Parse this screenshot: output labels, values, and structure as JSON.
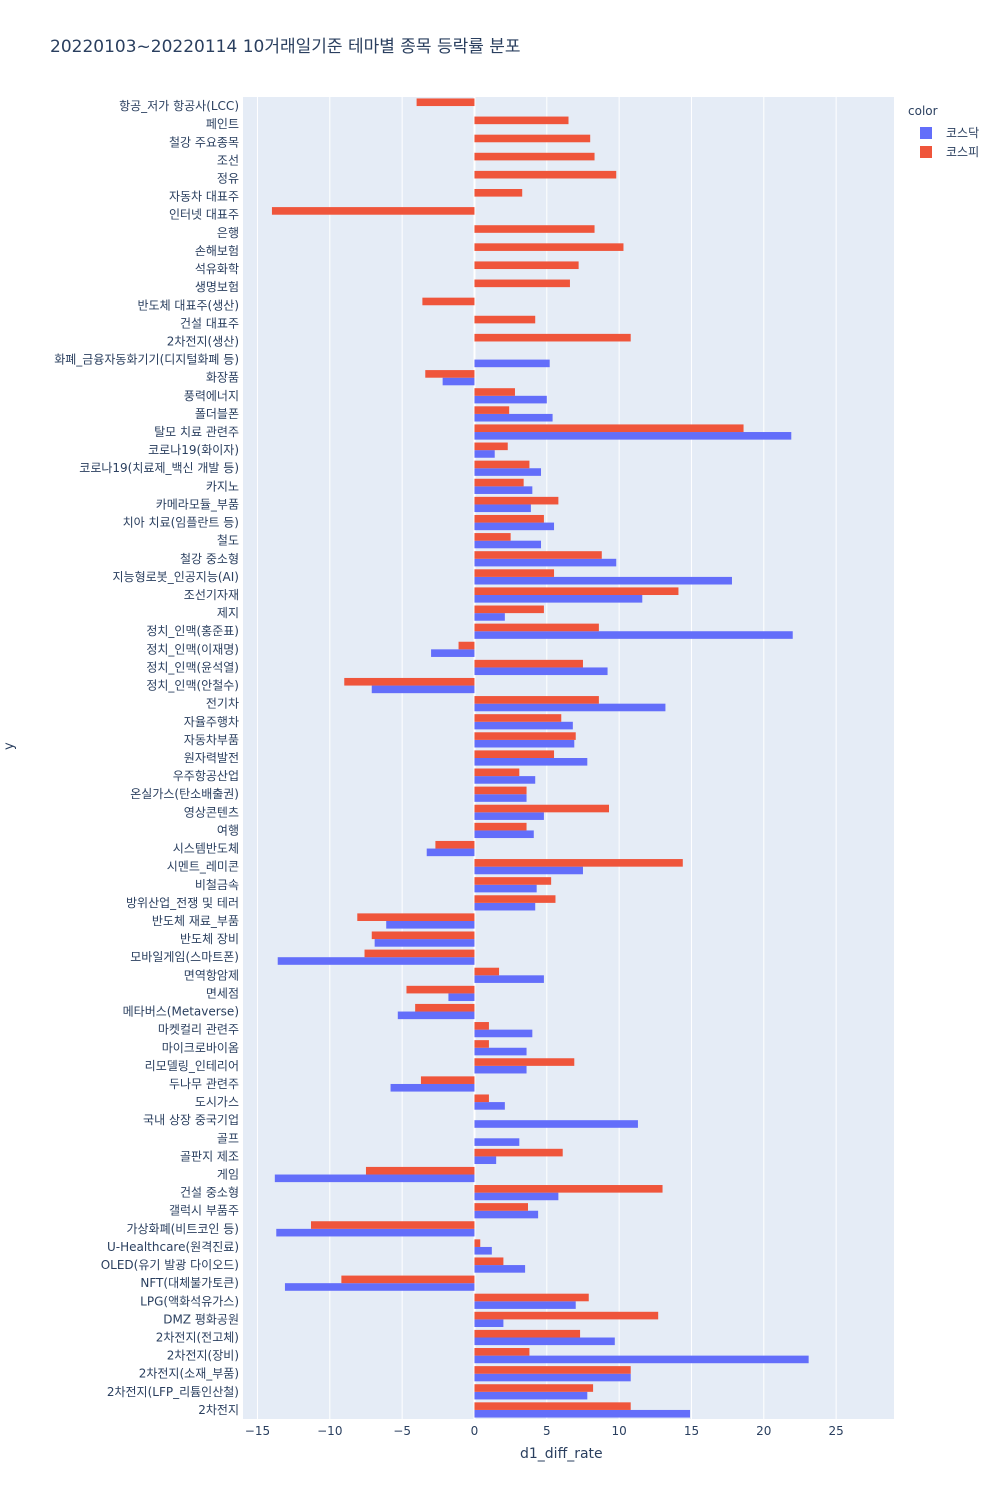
{
  "title": "20220103~20220114 10거래일기준 테마별 종목 등락률 분포",
  "legend": {
    "title": "color",
    "items": [
      {
        "label": "코스닥",
        "color": "#636efa"
      },
      {
        "label": "코스피",
        "color": "#ef553b"
      }
    ]
  },
  "chart_data": {
    "type": "bar",
    "orientation": "horizontal",
    "barmode": "relative-grouped",
    "xlabel": "d1_diff_rate",
    "ylabel": "y",
    "xlim": [
      -16.0,
      29.0
    ],
    "xticks": [
      -15,
      -10,
      -5,
      0,
      5,
      10,
      15,
      20,
      25
    ],
    "grid": true,
    "legend_position": "top-right",
    "categories": [
      "항공_저가 항공사(LCC)",
      "페인트",
      "철강 주요종목",
      "조선",
      "정유",
      "자동차 대표주",
      "인터넷 대표주",
      "은행",
      "손해보험",
      "석유화학",
      "생명보험",
      "반도체 대표주(생산)",
      "건설 대표주",
      "2차전지(생산)",
      "화폐_금융자동화기기(디지털화폐 등)",
      "화장품",
      "풍력에너지",
      "폴더블폰",
      "탈모 치료 관련주",
      "코로나19(화이자)",
      "코로나19(치료제_백신 개발 등)",
      "카지노",
      "카메라모듈_부품",
      "치아 치료(임플란트 등)",
      "철도",
      "철강 중소형",
      "지능형로봇_인공지능(AI)",
      "조선기자재",
      "제지",
      "정치_인맥(홍준표)",
      "정치_인맥(이재명)",
      "정치_인맥(윤석열)",
      "정치_인맥(안철수)",
      "전기차",
      "자율주행차",
      "자동차부품",
      "원자력발전",
      "우주항공산업",
      "온실가스(탄소배출권)",
      "영상콘텐츠",
      "여행",
      "시스템반도체",
      "시멘트_레미콘",
      "비철금속",
      "방위산업_전쟁 및 테러",
      "반도체 재료_부품",
      "반도체 장비",
      "모바일게임(스마트폰)",
      "면역항암제",
      "면세점",
      "메타버스(Metaverse)",
      "마켓컬리 관련주",
      "마이크로바이옴",
      "리모델링_인테리어",
      "두나무 관련주",
      "도시가스",
      "국내 상장 중국기업",
      "골프",
      "골판지 제조",
      "게임",
      "건설 중소형",
      "갤럭시 부품주",
      "가상화폐(비트코인 등)",
      "U-Healthcare(원격진료)",
      "OLED(유기 발광 다이오드)",
      "NFT(대체불가토큰)",
      "LPG(액화석유가스)",
      "DMZ 평화공원",
      "2차전지(전고체)",
      "2차전지(장비)",
      "2차전지(소재_부품)",
      "2차전지(LFP_리튬인산철)",
      "2차전지"
    ],
    "series": [
      {
        "name": "코스닥",
        "color": "#636efa",
        "values": [
          null,
          null,
          null,
          null,
          null,
          null,
          null,
          null,
          null,
          null,
          null,
          null,
          null,
          null,
          5.2,
          -2.2,
          5.0,
          5.4,
          21.9,
          1.4,
          4.6,
          4.0,
          3.9,
          5.5,
          4.6,
          9.8,
          17.8,
          11.6,
          2.1,
          22.0,
          -3.0,
          9.2,
          -7.1,
          13.2,
          6.8,
          6.9,
          7.8,
          4.2,
          3.6,
          4.8,
          4.1,
          -3.3,
          7.5,
          4.3,
          4.2,
          -6.1,
          -6.9,
          -13.6,
          4.8,
          -1.8,
          -5.3,
          4.0,
          3.6,
          3.6,
          -5.8,
          2.1,
          11.3,
          3.1,
          1.5,
          -13.8,
          5.8,
          4.4,
          -13.7,
          1.2,
          3.5,
          -13.1,
          7.0,
          2.0,
          9.7,
          23.1,
          10.8,
          7.8,
          14.9
        ]
      },
      {
        "name": "코스피",
        "color": "#ef553b",
        "values": [
          -4.0,
          6.5,
          8.0,
          8.3,
          9.8,
          3.3,
          -14.0,
          8.3,
          10.3,
          7.2,
          6.6,
          -3.6,
          4.2,
          10.8,
          null,
          -3.4,
          2.8,
          2.4,
          18.6,
          2.3,
          3.8,
          3.4,
          5.8,
          4.8,
          2.5,
          8.8,
          5.5,
          14.1,
          4.8,
          8.6,
          -1.1,
          7.5,
          -9.0,
          8.6,
          6.0,
          7.0,
          5.5,
          3.1,
          3.6,
          9.3,
          3.6,
          -2.7,
          14.4,
          5.3,
          5.6,
          -8.1,
          -7.1,
          -7.6,
          1.7,
          -4.7,
          -4.1,
          1.0,
          1.0,
          6.9,
          -3.7,
          1.0,
          null,
          null,
          6.1,
          -7.5,
          13.0,
          3.7,
          -11.3,
          0.4,
          2.0,
          -9.2,
          7.9,
          12.7,
          7.3,
          3.8,
          10.8,
          8.2,
          10.8
        ]
      }
    ]
  }
}
